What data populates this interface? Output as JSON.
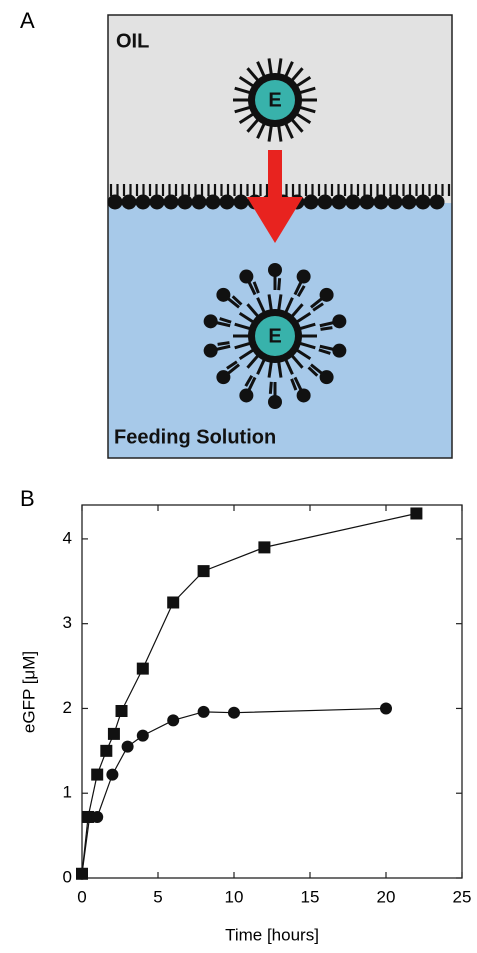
{
  "panel_labels": [
    "A",
    "B"
  ],
  "diagram": {
    "top_label": "OIL",
    "droplet_labels": [
      "E",
      "E"
    ],
    "bottom_label": "Feeding Solution"
  },
  "chart_data": {
    "type": "line",
    "x_label": "Time [hours]",
    "y_label": "eGFP [μM]",
    "xlim": [
      0,
      25
    ],
    "ylim": [
      0,
      4.4
    ],
    "xticks": [
      0,
      5,
      10,
      15,
      20,
      25
    ],
    "yticks": [
      0,
      1,
      2,
      3,
      4
    ],
    "grid": false,
    "series": [
      {
        "marker": "square",
        "color": "#111111",
        "x": [
          0,
          0.4,
          1,
          1.6,
          2.1,
          2.6,
          4,
          6,
          8,
          12,
          22
        ],
        "values": [
          0.05,
          0.72,
          1.22,
          1.5,
          1.7,
          1.97,
          2.47,
          3.25,
          3.62,
          3.9,
          4.3
        ]
      },
      {
        "marker": "circle",
        "color": "#111111",
        "x": [
          0,
          0.5,
          1,
          2,
          3,
          4,
          6,
          8,
          10,
          20
        ],
        "values": [
          0.05,
          0.72,
          0.72,
          1.22,
          1.55,
          1.68,
          1.86,
          1.96,
          1.95,
          2.0
        ]
      }
    ]
  }
}
